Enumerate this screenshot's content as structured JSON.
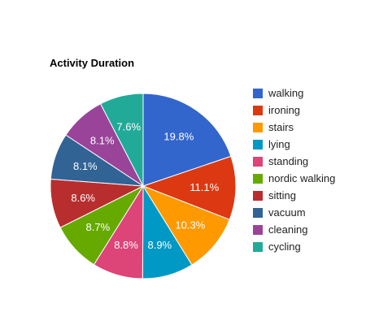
{
  "chart_data": {
    "type": "pie",
    "title": "Activity Duration",
    "slices": [
      {
        "label": "walking",
        "percent": 19.8,
        "display": "19.8%",
        "color": "#3366cc"
      },
      {
        "label": "ironing",
        "percent": 11.1,
        "display": "11.1%",
        "color": "#dc3912"
      },
      {
        "label": "stairs",
        "percent": 10.3,
        "display": "10.3%",
        "color": "#ff9900"
      },
      {
        "label": "lying",
        "percent": 8.9,
        "display": "8.9%",
        "color": "#0099c6"
      },
      {
        "label": "standing",
        "percent": 8.8,
        "display": "8.8%",
        "color": "#dd4477"
      },
      {
        "label": "nordic walking",
        "percent": 8.7,
        "display": "8.7%",
        "color": "#66aa00"
      },
      {
        "label": "sitting",
        "percent": 8.6,
        "display": "8.6%",
        "color": "#b82e2e"
      },
      {
        "label": "vacuum",
        "percent": 8.1,
        "display": "8.1%",
        "color": "#316395"
      },
      {
        "label": "cleaning",
        "percent": 8.1,
        "display": "8.1%",
        "color": "#994499"
      },
      {
        "label": "cycling",
        "percent": 7.6,
        "display": "7.6%",
        "color": "#22aa99"
      }
    ],
    "legend_position": "right"
  }
}
